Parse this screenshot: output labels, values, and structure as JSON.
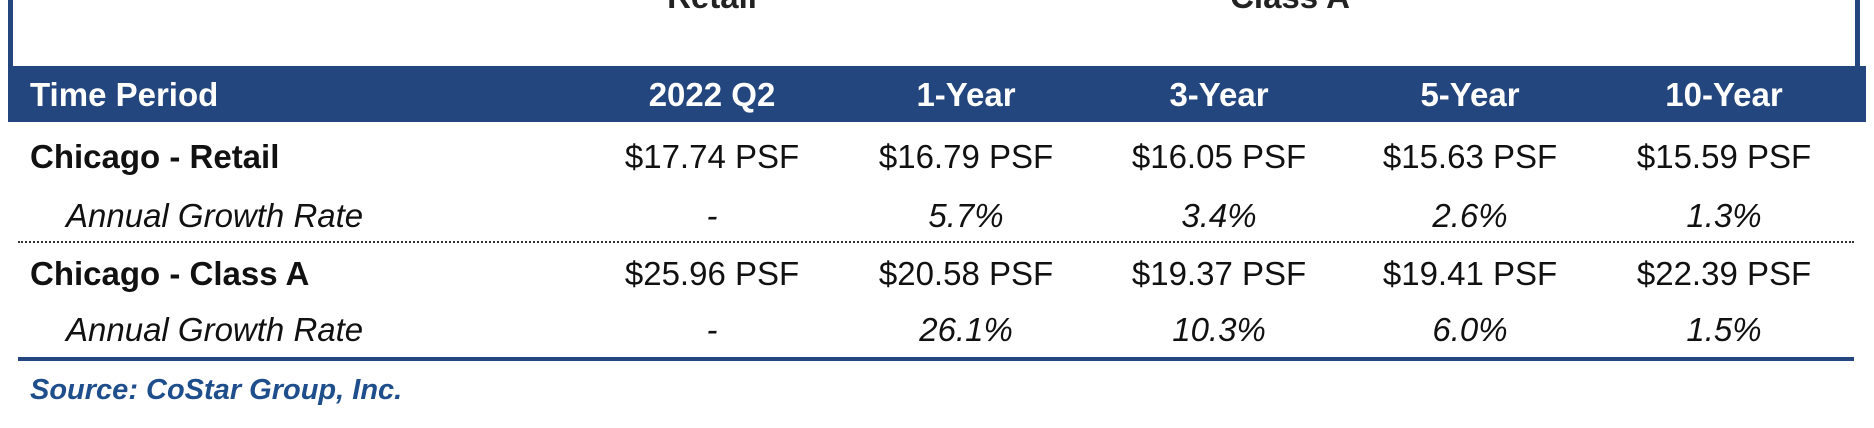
{
  "header": {
    "titles": [
      "Retail",
      "Class A"
    ]
  },
  "table": {
    "columns": [
      "Time Period",
      "2022 Q2",
      "1-Year",
      "3-Year",
      "5-Year",
      "10-Year"
    ],
    "rows": [
      [
        "Chicago - Retail",
        "$17.74 PSF",
        "$16.79 PSF",
        "$16.05 PSF",
        "$15.63 PSF",
        "$15.59 PSF"
      ],
      [
        "Annual Growth Rate",
        "-",
        "5.7%",
        "3.4%",
        "2.6%",
        "1.3%"
      ],
      [
        "Chicago - Class A",
        "$25.96 PSF",
        "$20.58 PSF",
        "$19.37 PSF",
        "$19.41 PSF",
        "$22.39 PSF"
      ],
      [
        "Annual Growth Rate",
        "-",
        "26.1%",
        "10.3%",
        "6.0%",
        "1.5%"
      ]
    ]
  },
  "source": "Source:  CoStar Group, Inc."
}
